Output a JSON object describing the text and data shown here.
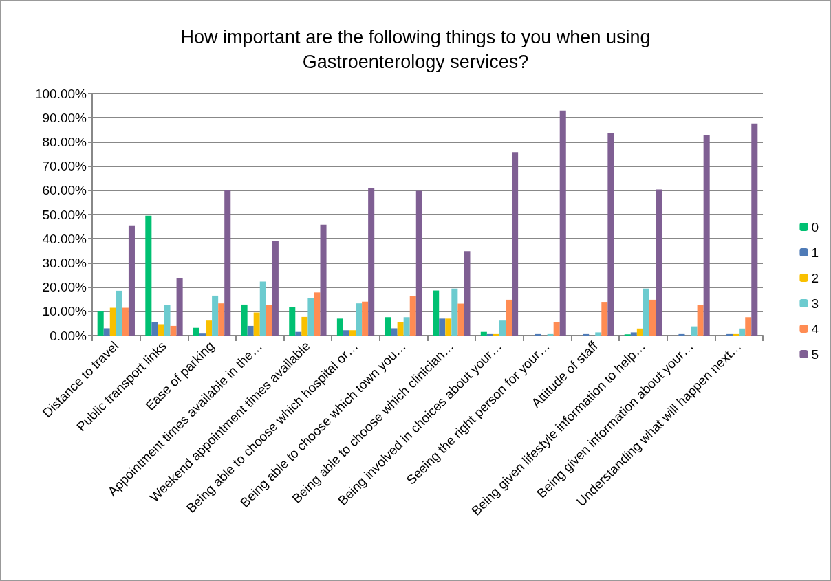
{
  "chart_data": {
    "type": "bar",
    "title": "How important are the following things to you when using\nGastroenterology services?",
    "categories": [
      "Distance to travel",
      "Public transport links",
      "Ease of parking",
      "Appointment times available in the…",
      "Weekend appointment times available",
      "Being able to choose which hospital or…",
      "Being able to choose which town you…",
      "Being able to choose which clinician…",
      "Being involved in choices about your…",
      "Seeing the right person for your…",
      "Attitude of staff",
      "Being given lifestyle information to help…",
      "Being given information about your…",
      "Understanding what will happen next…"
    ],
    "series": [
      {
        "name": "0",
        "color": "#00c072",
        "values": [
          10,
          49.5,
          3.2,
          12.8,
          11.7,
          7,
          7.6,
          18.6,
          1.5,
          0,
          0,
          0.5,
          0,
          0
        ]
      },
      {
        "name": "1",
        "color": "#4f7bb7",
        "values": [
          3,
          5.5,
          0.8,
          4,
          1.5,
          2.2,
          3,
          7,
          0.6,
          0.6,
          0.6,
          1.3,
          0.6,
          0.6
        ]
      },
      {
        "name": "2",
        "color": "#f9c000",
        "values": [
          11.5,
          4.7,
          6.2,
          9.5,
          7.7,
          2.2,
          5.4,
          7,
          0.6,
          0,
          0,
          2.9,
          0,
          0.6
        ]
      },
      {
        "name": "3",
        "color": "#6ccbcf",
        "values": [
          18.5,
          12.7,
          16.5,
          22.3,
          15.5,
          13.3,
          7.6,
          19.4,
          6.2,
          0.6,
          1.3,
          19.4,
          3.8,
          2.9
        ]
      },
      {
        "name": "4",
        "color": "#ff8c53",
        "values": [
          11.5,
          4,
          13.3,
          12.7,
          17.8,
          14,
          16.3,
          13.2,
          14.8,
          5.4,
          13.9,
          14.8,
          12.5,
          7.6
        ]
      },
      {
        "name": "5",
        "color": "#7f5f93",
        "values": [
          45.5,
          23.7,
          60.2,
          39,
          45.8,
          60.9,
          59.8,
          34.9,
          75.8,
          93,
          83.8,
          60.4,
          82.8,
          87.6
        ]
      }
    ],
    "ylim": [
      0,
      100
    ],
    "yticks": [
      {
        "value": 0,
        "label": "0.00%"
      },
      {
        "value": 10,
        "label": "10.00%"
      },
      {
        "value": 20,
        "label": "20.00%"
      },
      {
        "value": 30,
        "label": "30.00%"
      },
      {
        "value": 40,
        "label": "40.00%"
      },
      {
        "value": 50,
        "label": "50.00%"
      },
      {
        "value": 60,
        "label": "60.00%"
      },
      {
        "value": 70,
        "label": "70.00%"
      },
      {
        "value": 80,
        "label": "80.00%"
      },
      {
        "value": 90,
        "label": "90.00%"
      },
      {
        "value": 100,
        "label": "100.00%"
      }
    ],
    "grid": "y",
    "legend": "right"
  }
}
